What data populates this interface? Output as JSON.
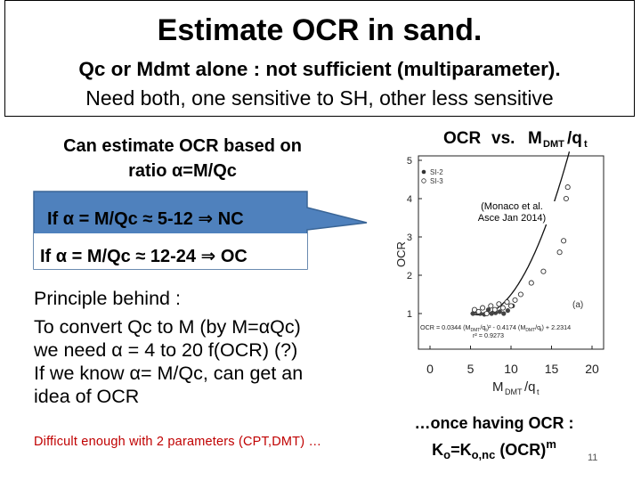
{
  "title": {
    "main": "Estimate OCR in sand.",
    "line1": "Qc or Mdmt alone : not sufficient (multiparameter).",
    "line2": "Need both, one sensitive to SH, other less sensitive"
  },
  "intro": {
    "line1": "Can estimate OCR based on",
    "line2": "ratio α=M/Qc"
  },
  "callout": {
    "line1": "If  α = M/Qc ≈ 5-12 ⇒ NC",
    "line2": "If α = M/Qc ≈ 12-24 ⇒ OC",
    "fill_color": "#4f81bd",
    "border_color": "#3a6596"
  },
  "principle": {
    "heading": "Principle behind :",
    "lines": [
      "To convert Qc to M (by M=αQc)",
      "we need α = 4 to 20 f(OCR)  (?)",
      "If we know α= M/Qc, can get an",
      "idea of OCR"
    ]
  },
  "difficult_note": "Difficult  enough with 2 parameters (CPT,DMT) …",
  "figure": {
    "title_left": "OCR",
    "title_vs": "vs.",
    "title_right": "M",
    "title_right_sub": "DMT",
    "title_right_tail": "/q",
    "title_right_tail_sub": "t",
    "legend": [
      "SI-2",
      "SI-3"
    ],
    "panel_label": "(a)",
    "equation_line1": "OCR = 0.0344 (M",
    "equation_line1_rest": "/q",
    "equation_line1_tail": ")² - 0.4174 (M",
    "equation_line1_end": "/q",
    "equation_line1_final": ") + 2.2314",
    "equation_line2": "r² = 0.9273",
    "reference": "(Monaco et al.\nAsce Jan 2014)"
  },
  "chart_data": {
    "type": "scatter",
    "title": "OCR vs. M_DMT/q_t",
    "xlabel": "M_DMT/q_t",
    "ylabel": "OCR",
    "xlim": [
      0,
      20
    ],
    "ylim": [
      0,
      5
    ],
    "xticks": [
      "0",
      "5",
      "10",
      "15",
      "20"
    ],
    "yticks": [
      "1",
      "2",
      "3",
      "4",
      "5"
    ],
    "grid": false,
    "legend_position": "top-left",
    "series": [
      {
        "name": "SI-2",
        "marker": "filled",
        "x": [
          5.3,
          5.8,
          6.2,
          6.7,
          7.2,
          7.6,
          8.1,
          8.6,
          9.1,
          9.6,
          10.2
        ],
        "y": [
          1.0,
          1.05,
          1.0,
          0.98,
          1.1,
          1.0,
          1.02,
          1.05,
          1.0,
          1.08,
          1.2
        ]
      },
      {
        "name": "SI-3",
        "marker": "open",
        "x": [
          5.5,
          6.0,
          6.5,
          7.0,
          7.5,
          8.0,
          8.5,
          9.0,
          9.5,
          10.0,
          10.5,
          11.2,
          12.5,
          14.0,
          16.0,
          16.5,
          17.0,
          16.8
        ],
        "y": [
          1.1,
          1.05,
          1.15,
          1.0,
          1.2,
          1.1,
          1.25,
          1.15,
          1.3,
          1.2,
          1.35,
          1.5,
          1.8,
          2.1,
          2.6,
          2.9,
          4.3,
          4.0
        ]
      }
    ],
    "fit": {
      "a": 0.0344,
      "b": -0.4174,
      "c": 2.2314,
      "x_range": [
        5,
        17.2
      ]
    }
  },
  "conclusion": {
    "prefix": "…once having ",
    "ocr": "OCR :",
    "k_main": "K",
    "k_sub": "o",
    "eq": "=K",
    "k2_sub": "o,nc",
    "tail": " (OCR)",
    "sup": "m"
  },
  "page_number": "11"
}
